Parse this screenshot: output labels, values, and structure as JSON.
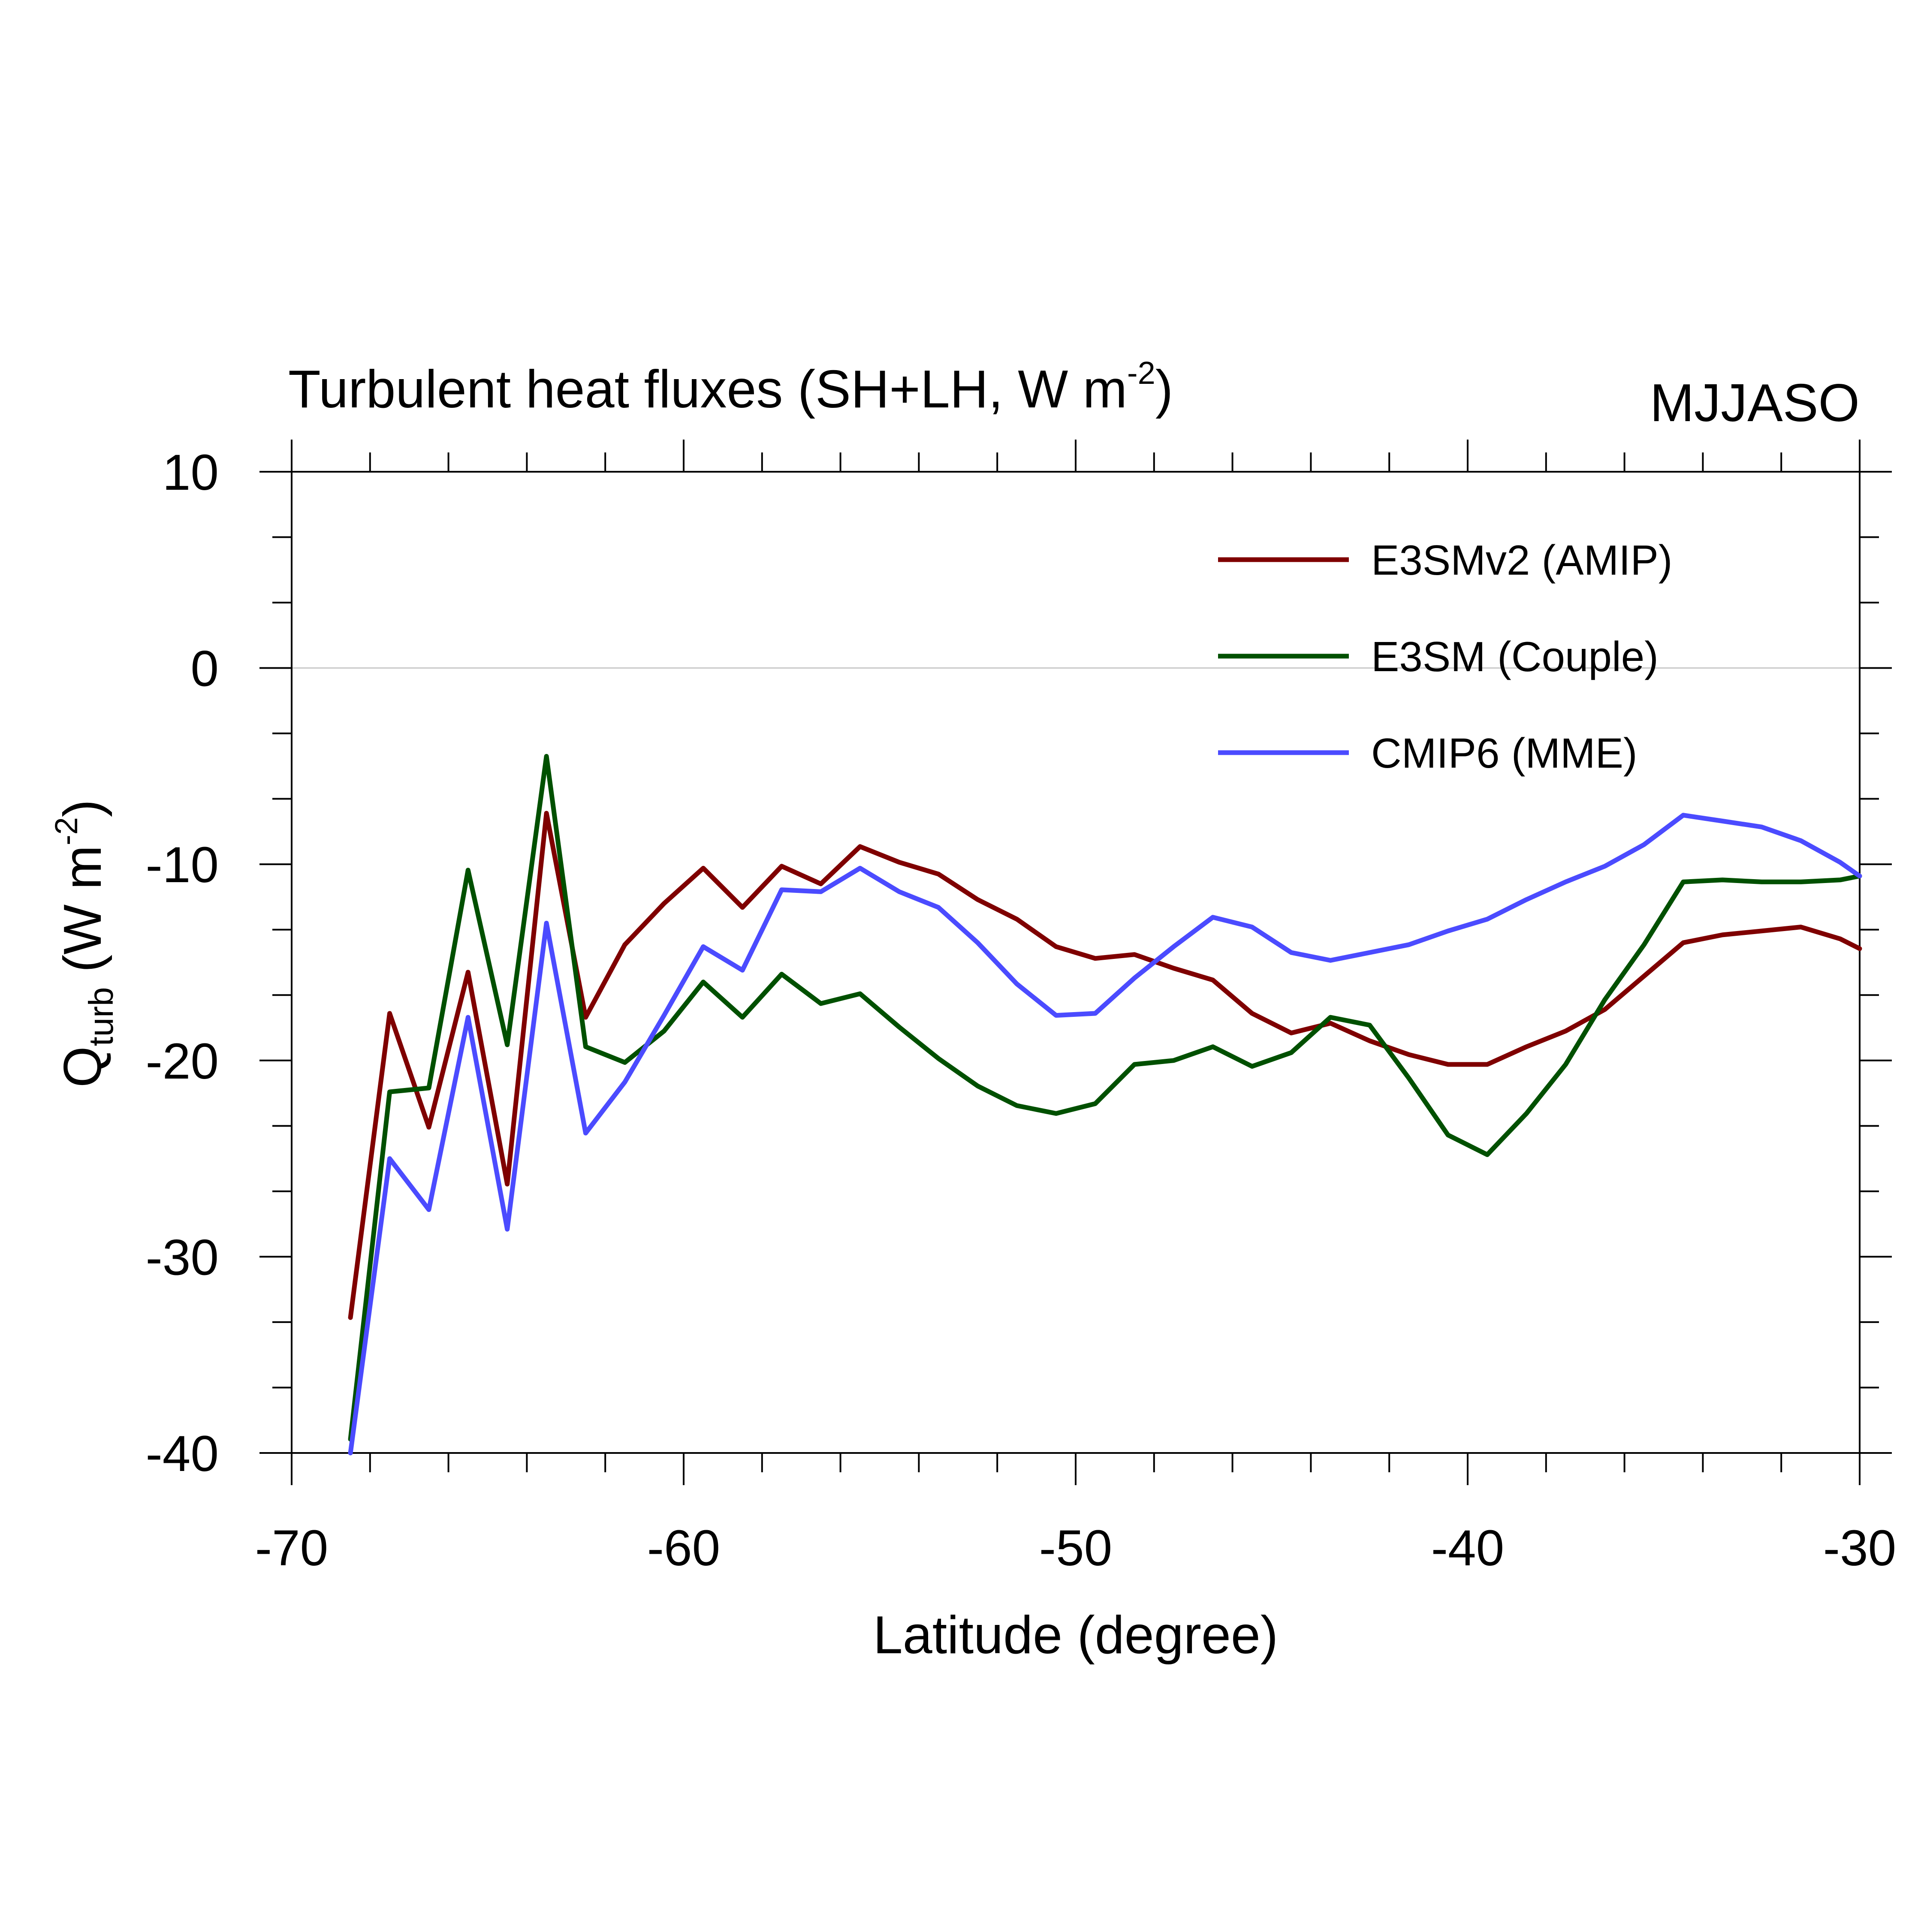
{
  "chart_data": {
    "type": "line",
    "title_main": "Turbulent heat fluxes (SH+LH, W m",
    "title_exp": "-2",
    "title_close": ")",
    "season": "MJJASO",
    "xlabel": "Latitude (degree)",
    "ylabel_q": "Q",
    "ylabel_sub": "turb",
    "ylabel_mid": " (W m",
    "ylabel_exp": "-2",
    "ylabel_close": ")",
    "xlim": [
      -70,
      -30
    ],
    "ylim": [
      -40,
      10
    ],
    "x_major_ticks": [
      -70,
      -60,
      -50,
      -40,
      -30
    ],
    "x_tick_labels": [
      "-70",
      "-60",
      "-50",
      "-40",
      "-30"
    ],
    "y_major_ticks": [
      -40,
      -30,
      -20,
      -10,
      0,
      10
    ],
    "y_tick_labels": [
      "-40",
      "-30",
      "-20",
      "-10",
      "0",
      "10"
    ],
    "zero_line": true,
    "grid": false,
    "legend_position": "top-right",
    "x": [
      -68.5,
      -67.5,
      -66.5,
      -65.5,
      -64.5,
      -63.5,
      -62.5,
      -61.5,
      -60.5,
      -59.5,
      -58.5,
      -57.5,
      -56.5,
      -55.5,
      -54.5,
      -53.5,
      -52.5,
      -51.5,
      -50.5,
      -49.5,
      -48.5,
      -47.5,
      -46.5,
      -45.5,
      -44.5,
      -43.5,
      -42.5,
      -41.5,
      -40.5,
      -39.5,
      -38.5,
      -37.5,
      -36.5,
      -35.5,
      -34.5,
      -33.5,
      -32.5,
      -31.5,
      -30.5,
      -30.0
    ],
    "series": [
      {
        "name": "E3SMv2 (AMIP)",
        "color": "#7f0000",
        "values": [
          -33.1,
          -17.6,
          -23.4,
          -15.5,
          -26.3,
          -7.4,
          -17.8,
          -14.1,
          -12.0,
          -10.2,
          -12.2,
          -10.1,
          -11.0,
          -9.1,
          -9.9,
          -10.5,
          -11.8,
          -12.8,
          -14.2,
          -14.8,
          -14.6,
          -15.3,
          -15.9,
          -17.6,
          -18.6,
          -18.1,
          -19.0,
          -19.7,
          -20.2,
          -20.2,
          -19.3,
          -18.5,
          -17.4,
          -15.7,
          -14.0,
          -13.6,
          -13.4,
          -13.2,
          -13.8,
          -14.3
        ]
      },
      {
        "name": "E3SM (Couple)",
        "color": "#005000",
        "values": [
          -39.3,
          -21.6,
          -21.4,
          -10.3,
          -19.2,
          -4.5,
          -19.3,
          -20.1,
          -18.5,
          -16.0,
          -17.8,
          -15.6,
          -17.1,
          -16.6,
          -18.3,
          -19.9,
          -21.3,
          -22.3,
          -22.7,
          -22.2,
          -20.2,
          -20.0,
          -19.3,
          -20.3,
          -19.6,
          -17.8,
          -18.2,
          -20.9,
          -23.8,
          -24.8,
          -22.7,
          -20.2,
          -16.9,
          -14.1,
          -10.9,
          -10.8,
          -10.9,
          -10.9,
          -10.8,
          -10.6
        ]
      },
      {
        "name": "CMIP6 (MME)",
        "color": "#4b4bff",
        "values": [
          -40.0,
          -25.0,
          -27.6,
          -17.8,
          -28.6,
          -13.0,
          -23.7,
          -21.1,
          -17.7,
          -14.2,
          -15.4,
          -11.3,
          -11.4,
          -10.2,
          -11.4,
          -12.2,
          -14.0,
          -16.1,
          -17.7,
          -17.6,
          -15.8,
          -14.2,
          -12.7,
          -13.2,
          -14.5,
          -14.9,
          -14.5,
          -14.1,
          -13.4,
          -12.8,
          -11.8,
          -10.9,
          -10.1,
          -9.0,
          -7.5,
          -7.8,
          -8.1,
          -8.8,
          -9.9,
          -10.6
        ]
      }
    ]
  }
}
